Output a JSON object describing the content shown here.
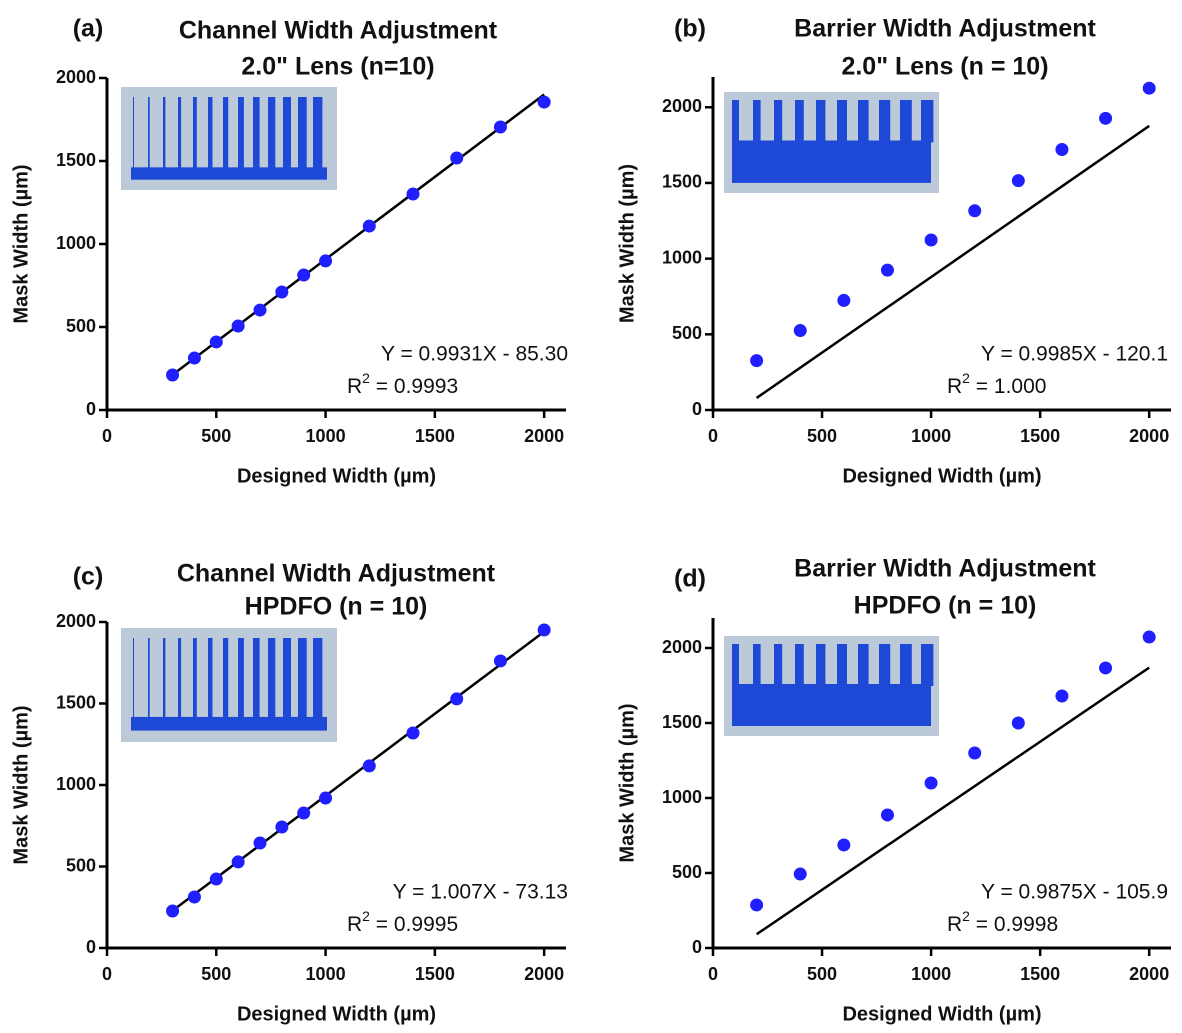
{
  "chart_data": [
    {
      "type": "scatter",
      "panel_label": "(a)",
      "title": "Channel Width Adjustment",
      "subtitle": "2.0\" Lens (n=10)",
      "x_label": "Designed Width (µm)",
      "y_label": "Mask Width (µm)",
      "x": [
        300,
        400,
        500,
        600,
        700,
        800,
        900,
        1000,
        1200,
        1400,
        1600,
        1800,
        2000
      ],
      "values": [
        211,
        313,
        410,
        506,
        602,
        711,
        813,
        898,
        1108,
        1301,
        1518,
        1705,
        1855
      ],
      "color": "#1f1fff",
      "fit": {
        "slope": 0.9931,
        "intercept": -85.3
      },
      "equation": "Y = 0.9931X - 85.30",
      "r2": {
        "base": "R",
        "sup": "2",
        "text": " = 0.9993"
      },
      "xlim": [
        0,
        2100
      ],
      "xticks": [
        0,
        500,
        1000,
        1500,
        2000
      ],
      "ylim": [
        0,
        2000
      ],
      "yticks": [
        0,
        500,
        1000,
        1500,
        2000
      ]
    },
    {
      "type": "scatter",
      "panel_label": "(b)",
      "title": "Barrier Width Adjustment",
      "subtitle": "2.0\" Lens (n = 10)",
      "x_label": "Designed Width (µm)",
      "y_label": "Mask Width (µm)",
      "x": [
        200,
        400,
        600,
        800,
        1000,
        1200,
        1400,
        1600,
        1800,
        2000
      ],
      "values": [
        326,
        525,
        724,
        924,
        1123,
        1316,
        1515,
        1721,
        1927,
        2126
      ],
      "color": "#1f1fff",
      "fit": {
        "slope": 0.9985,
        "intercept": -120.1
      },
      "equation": "Y = 0.9985X - 120.1",
      "r2": {
        "base": "R",
        "sup": "2",
        "text": " = 1.000"
      },
      "xlim": [
        0,
        2100
      ],
      "xticks": [
        0,
        500,
        1000,
        1500,
        2000
      ],
      "ylim": [
        0,
        2200
      ],
      "yticks": [
        0,
        500,
        1000,
        1500,
        2000
      ]
    },
    {
      "type": "scatter",
      "panel_label": "(c)",
      "title": "Channel Width Adjustment",
      "subtitle": "HPDFO (n = 10)",
      "x_label": "Designed Width (µm)",
      "y_label": "Mask Width (µm)",
      "x": [
        300,
        400,
        500,
        600,
        700,
        800,
        900,
        1000,
        1200,
        1400,
        1600,
        1800,
        2000
      ],
      "values": [
        227,
        313,
        423,
        528,
        644,
        742,
        828,
        920,
        1117,
        1319,
        1528,
        1761,
        1951
      ],
      "color": "#1f1fff",
      "fit": {
        "slope": 1.007,
        "intercept": -73.13
      },
      "equation": "Y = 1.007X - 73.13",
      "r2": {
        "base": "R",
        "sup": "2",
        "text": " = 0.9995"
      },
      "xlim": [
        0,
        2100
      ],
      "xticks": [
        0,
        500,
        1000,
        1500,
        2000
      ],
      "ylim": [
        0,
        2000
      ],
      "yticks": [
        0,
        500,
        1000,
        1500,
        2000
      ]
    },
    {
      "type": "scatter",
      "panel_label": "(d)",
      "title": "Barrier Width Adjustment",
      "subtitle": "HPDFO (n = 10)",
      "x_label": "Designed Width (µm)",
      "y_label": "Mask Width (µm)",
      "x": [
        200,
        400,
        600,
        800,
        1000,
        1200,
        1400,
        1600,
        1800,
        2000
      ],
      "values": [
        287,
        493,
        687,
        887,
        1100,
        1300,
        1500,
        1680,
        1867,
        2073
      ],
      "color": "#1f1fff",
      "fit": {
        "slope": 0.9875,
        "intercept": -105.9
      },
      "equation": "Y = 0.9875X - 105.9",
      "r2": {
        "base": "R",
        "sup": "2",
        "text": " = 0.9998"
      },
      "xlim": [
        0,
        2100
      ],
      "xticks": [
        0,
        500,
        1000,
        1500,
        2000
      ],
      "ylim": [
        0,
        2200
      ],
      "yticks": [
        0,
        500,
        1000,
        1500,
        2000
      ]
    }
  ]
}
